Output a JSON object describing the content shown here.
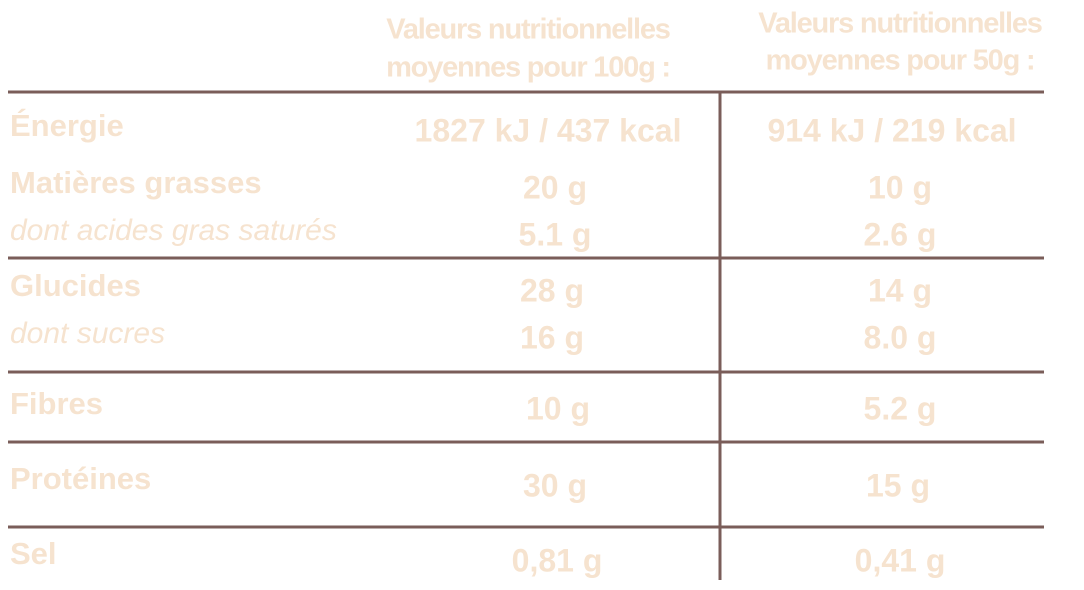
{
  "header": {
    "columns": [
      [
        "Valeurs nutritionnelles",
        "moyennes pour 100g :"
      ],
      [
        "Valeurs nutritionnelles",
        "moyennes pour 50g :"
      ]
    ]
  },
  "table": {
    "rows": [
      [
        "Énergie",
        "1827 kJ / 437 kcal",
        "914 kJ / 219 kcal"
      ],
      [
        "Matières grasses",
        "20 g",
        "10 g"
      ],
      [
        "dont acides gras saturés",
        "5.1 g",
        "2.6 g"
      ],
      [
        "Glucides",
        "28 g",
        "14 g"
      ],
      [
        "dont sucres",
        "16 g",
        "8.0 g"
      ],
      [
        "Fibres",
        "10 g",
        "5.2 g"
      ],
      [
        "Protéines",
        "30 g",
        "15 g"
      ],
      [
        "Sel",
        "0,81 g",
        "0,41 g"
      ]
    ]
  }
}
